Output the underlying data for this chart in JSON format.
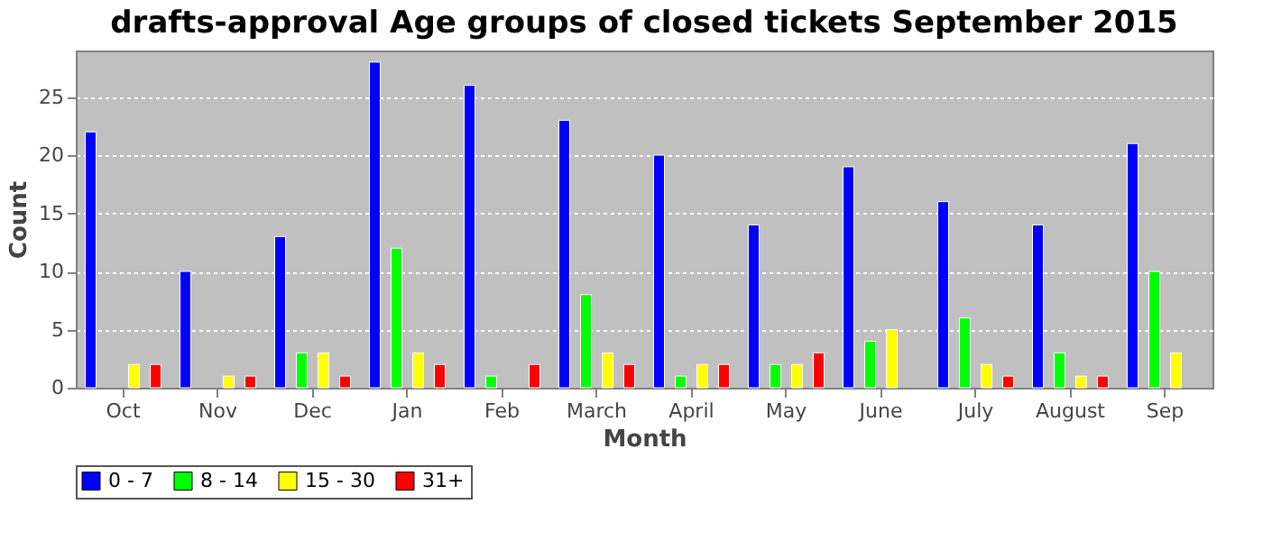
{
  "chart_data": {
    "type": "bar",
    "title": "drafts-approval Age groups of closed tickets September 2015",
    "xlabel": "Month",
    "ylabel": "Count",
    "categories": [
      "Oct",
      "Nov",
      "Dec",
      "Jan",
      "Feb",
      "March",
      "April",
      "May",
      "June",
      "July",
      "August",
      "Sep"
    ],
    "series": [
      {
        "name": "0 - 7",
        "color": "#0000ff",
        "values": [
          22,
          10,
          13,
          28,
          26,
          23,
          20,
          14,
          19,
          16,
          14,
          21
        ]
      },
      {
        "name": "8 - 14",
        "color": "#00ff00",
        "values": [
          null,
          null,
          3,
          12,
          1,
          8,
          1,
          2,
          4,
          6,
          3,
          10
        ]
      },
      {
        "name": "15 - 30",
        "color": "#ffff00",
        "values": [
          2,
          1,
          3,
          3,
          null,
          3,
          2,
          2,
          5,
          2,
          1,
          3
        ]
      },
      {
        "name": "31+",
        "color": "#ff0000",
        "values": [
          2,
          1,
          1,
          2,
          2,
          2,
          2,
          3,
          null,
          1,
          1,
          null
        ]
      }
    ],
    "ylim": [
      0,
      29
    ],
    "yticks": [
      0,
      5,
      10,
      15,
      20,
      25
    ],
    "grid": "y",
    "legend": "bottom"
  }
}
